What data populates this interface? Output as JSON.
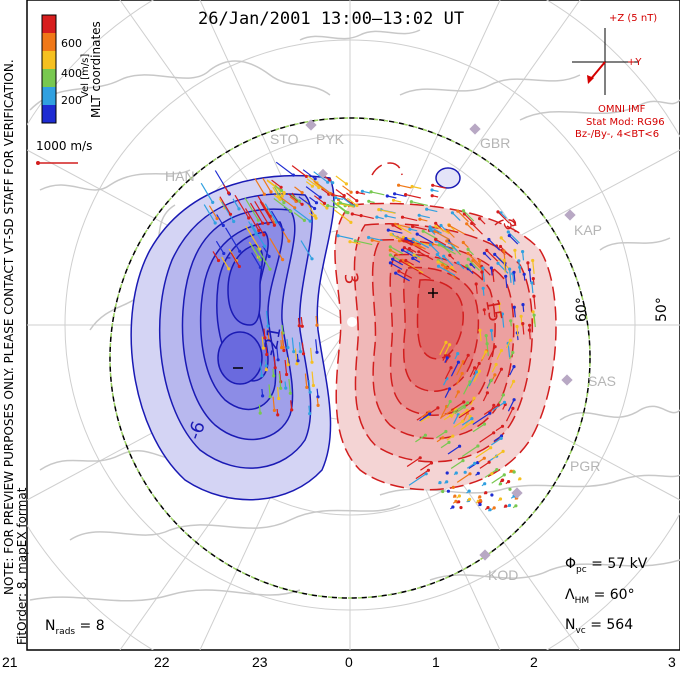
{
  "title": "26/Jan/2001 13:00–13:02 UT",
  "side_label_1": "NOTE: FOR PREVIEW PURPOSES ONLY. PLEASE CONTACT VT-SD STAFF FOR VERIFICATION.",
  "side_label_2": "FitOrder: 8, mapEX format",
  "colorbar": {
    "ticks": [
      "600",
      "400",
      "200"
    ],
    "label": "Vel [m/s]",
    "coords_label": "MLT coordinates",
    "colors": [
      "#d71e1e",
      "#f07818",
      "#f5c020",
      "#78c850",
      "#30a0e0",
      "#1e2cd2"
    ]
  },
  "velocity_ref": "1000 m/s",
  "imf": {
    "z_label": "+Z (5 nT)",
    "y_label": "+Y",
    "title": "OMNI IMF",
    "model": "Stat Mod: RG96",
    "condition": "Bz-/By-, 4<BT<6"
  },
  "stats": {
    "phi_symbol": "Φ",
    "phi_sub": "pc",
    "phi_value": " = 57 kV",
    "lambda_symbol": "Λ",
    "lambda_sub": "HM",
    "lambda_value": " = 60°",
    "nvc_symbol": "N",
    "nvc_sub": "vc",
    "nvc_value": " = 564",
    "nrads_symbol": "N",
    "nrads_sub": "rads",
    "nrads_value": " = 8"
  },
  "mlt_ticks": [
    "21",
    "22",
    "23",
    "0",
    "1",
    "2",
    "3"
  ],
  "lat_labels": [
    "60°",
    "50°"
  ],
  "sites": [
    "STO",
    "PYK",
    "HAN",
    "GBR",
    "KAP",
    "SAS",
    "PGR",
    "KOD"
  ],
  "contour_labels": [
    "-21",
    "-6",
    "-",
    "3",
    "3",
    "15",
    "+"
  ],
  "colors": {
    "negative_contour": "#1a1ab4",
    "positive_contour": "#d21e1e",
    "negative_fill": "#8888ee",
    "positive_fill": "#f08080"
  }
}
